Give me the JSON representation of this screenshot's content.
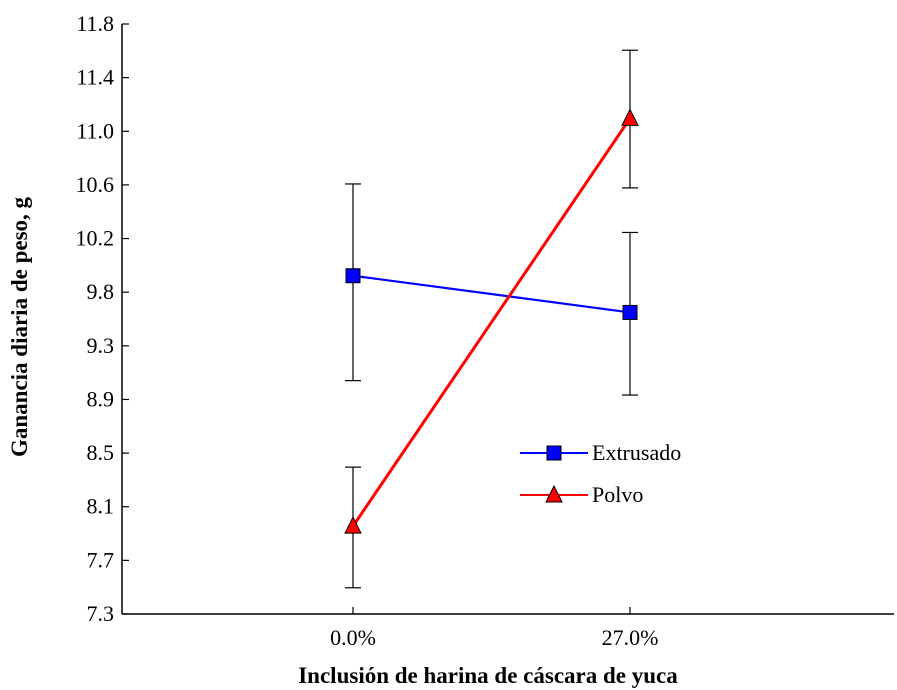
{
  "chart_data": {
    "type": "line",
    "title": "",
    "xlabel": "Inclusión de harina de cáscara de yuca",
    "ylabel": "Ganancia diaria de peso, g",
    "categories": [
      "0.0%",
      "27.0%"
    ],
    "yticks": [
      "7.3",
      "7.7",
      "8.1",
      "8.5",
      "8.9",
      "9.3",
      "9.8",
      "10.2",
      "10.6",
      "11.0",
      "11.4",
      "11.8"
    ],
    "ylim": [
      7.3,
      11.8
    ],
    "grid": false,
    "legend_position": "center-right",
    "series": [
      {
        "name": "Extrusado",
        "color": "#0000ff",
        "marker": "square",
        "values": [
          9.88,
          9.6
        ],
        "error_low": [
          9.08,
          8.97
        ],
        "error_high": [
          10.58,
          10.21
        ]
      },
      {
        "name": "Polvo",
        "color": "#ff0000",
        "marker": "triangle",
        "values": [
          7.97,
          11.08
        ],
        "error_low": [
          7.5,
          10.55
        ],
        "error_high": [
          8.42,
          11.6
        ]
      }
    ]
  }
}
